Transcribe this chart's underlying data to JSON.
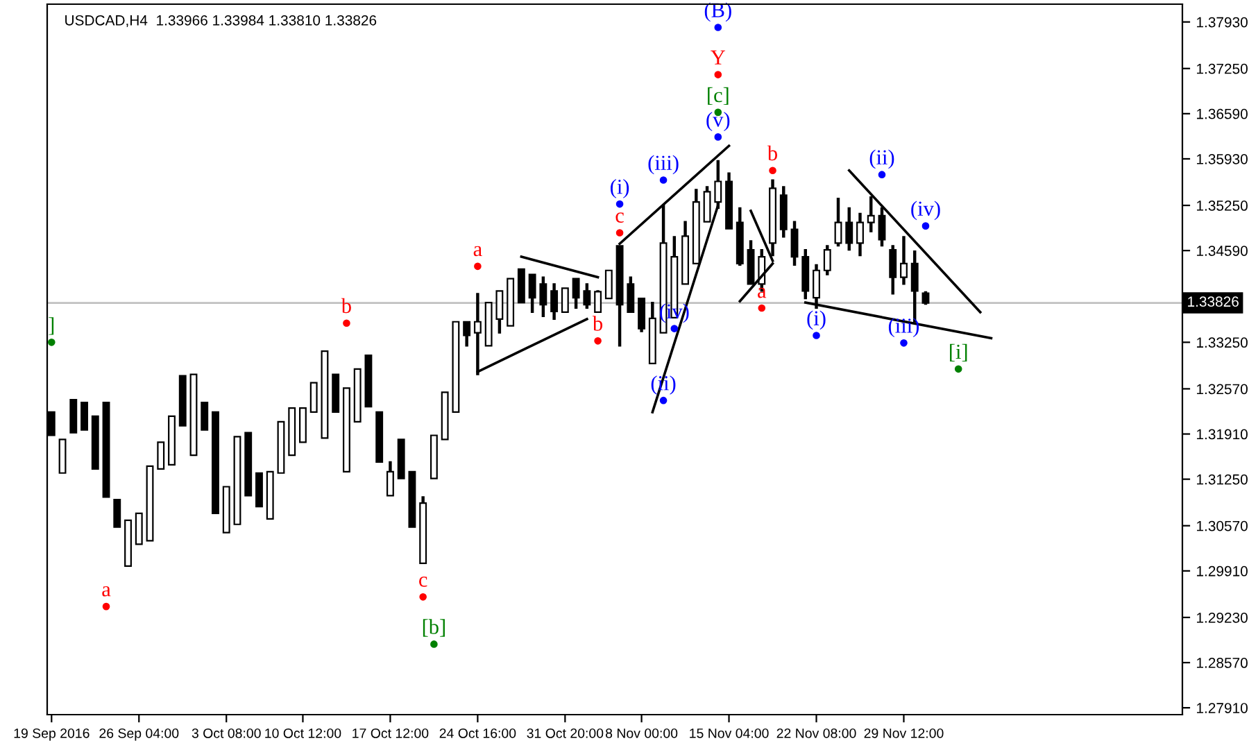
{
  "chart_data": {
    "type": "candlestick",
    "title": "USDCAD,H4  1.33966 1.33984 1.33810 1.33826",
    "categories": [
      "19 Sep 2016",
      null,
      null,
      null,
      null,
      null,
      null,
      null,
      "26 Sep 04:00",
      null,
      null,
      null,
      null,
      null,
      null,
      null,
      "3 Oct 08:00",
      null,
      null,
      null,
      null,
      null,
      null,
      "10 Oct 12:00",
      null,
      null,
      null,
      null,
      null,
      null,
      null,
      "17 Oct 12:00",
      null,
      null,
      null,
      null,
      null,
      null,
      null,
      "24 Oct 16:00",
      null,
      null,
      null,
      null,
      null,
      null,
      null,
      "31 Oct 20:00",
      null,
      null,
      null,
      null,
      null,
      null,
      "8 Nov 00:00",
      null,
      null,
      null,
      null,
      null,
      null,
      null,
      "15 Nov 04:00",
      null,
      null,
      null,
      null,
      null,
      null,
      null,
      "22 Nov 08:00",
      null,
      null,
      null,
      null,
      null,
      null,
      null,
      "29 Nov 12:00",
      null,
      null,
      null,
      null,
      null,
      null,
      null,
      null,
      null,
      null,
      null,
      null,
      null,
      null,
      null,
      null,
      null,
      null,
      null,
      null,
      null,
      null,
      null,
      null,
      null
    ],
    "ohlc": [
      [
        1.3223,
        1.3223,
        1.3189,
        1.3189
      ],
      [
        1.3134,
        1.3183,
        1.3134,
        1.3183
      ],
      [
        1.3241,
        1.3241,
        1.3193,
        1.3193
      ],
      [
        1.3237,
        1.3237,
        1.3197,
        1.3197
      ],
      [
        1.3217,
        1.3217,
        1.314,
        1.314
      ],
      [
        1.3237,
        1.3237,
        1.3099,
        1.3099
      ],
      [
        1.3095,
        1.3095,
        1.3055,
        1.3055
      ],
      [
        1.2998,
        1.3065,
        1.2998,
        1.3065
      ],
      [
        1.303,
        1.3075,
        1.303,
        1.3075
      ],
      [
        1.3035,
        1.3144,
        1.3035,
        1.3144
      ],
      [
        1.314,
        1.3179,
        1.314,
        1.3179
      ],
      [
        1.3146,
        1.3217,
        1.3146,
        1.3217
      ],
      [
        1.3276,
        1.3276,
        1.3203,
        1.3203
      ],
      [
        1.316,
        1.3278,
        1.316,
        1.3278
      ],
      [
        1.3237,
        1.3237,
        1.3197,
        1.3197
      ],
      [
        1.3223,
        1.3223,
        1.3075,
        1.3075
      ],
      [
        1.3047,
        1.3114,
        1.3047,
        1.3114
      ],
      [
        1.3059,
        1.3187,
        1.3059,
        1.3187
      ],
      [
        1.3193,
        1.3193,
        1.3101,
        1.3101
      ],
      [
        1.3134,
        1.3134,
        1.3085,
        1.3085
      ],
      [
        1.3067,
        1.3136,
        1.3067,
        1.3136
      ],
      [
        1.3134,
        1.3209,
        1.3134,
        1.3209
      ],
      [
        1.316,
        1.3229,
        1.316,
        1.3229
      ],
      [
        1.3179,
        1.3229,
        1.3179,
        1.3229
      ],
      [
        1.3223,
        1.3266,
        1.3223,
        1.3266
      ],
      [
        1.3185,
        1.3312,
        1.3185,
        1.3312
      ],
      [
        1.3278,
        1.3278,
        1.3223,
        1.3223
      ],
      [
        1.3136,
        1.3258,
        1.3136,
        1.3258
      ],
      [
        1.3209,
        1.3286,
        1.3209,
        1.3286
      ],
      [
        1.3306,
        1.3306,
        1.3231,
        1.3231
      ],
      [
        1.3223,
        1.3223,
        1.315,
        1.315
      ],
      [
        1.3101,
        1.315,
        1.3101,
        1.3136
      ],
      [
        1.3183,
        1.3183,
        1.3126,
        1.3126
      ],
      [
        1.3136,
        1.3136,
        1.3055,
        1.3055
      ],
      [
        1.3002,
        1.3099,
        1.3002,
        1.309
      ],
      [
        1.3126,
        1.3189,
        1.3126,
        1.3189
      ],
      [
        1.3183,
        1.3252,
        1.3183,
        1.3252
      ],
      [
        1.3223,
        1.3355,
        1.3223,
        1.3355
      ],
      [
        1.3355,
        1.3355,
        1.332,
        1.3335
      ],
      [
        1.3339,
        1.3396,
        1.3278,
        1.3355
      ],
      [
        1.332,
        1.3383,
        1.332,
        1.3383
      ],
      [
        1.3359,
        1.34,
        1.3339,
        1.34
      ],
      [
        1.3349,
        1.3418,
        1.3349,
        1.3418
      ],
      [
        1.3432,
        1.3432,
        1.3383,
        1.3383
      ],
      [
        1.3424,
        1.3424,
        1.3369,
        1.339
      ],
      [
        1.341,
        1.342,
        1.3363,
        1.338
      ],
      [
        1.34,
        1.341,
        1.3359,
        1.337
      ],
      [
        1.3369,
        1.3404,
        1.3369,
        1.3404
      ],
      [
        1.3418,
        1.3418,
        1.3375,
        1.339
      ],
      [
        1.34,
        1.341,
        1.3375,
        1.338
      ],
      [
        1.3369,
        1.34,
        1.3369,
        1.3399
      ],
      [
        1.3389,
        1.343,
        1.3389,
        1.343
      ],
      [
        1.3466,
        1.3466,
        1.332,
        1.338
      ],
      [
        1.341,
        1.342,
        1.3369,
        1.3369
      ],
      [
        1.3389,
        1.3389,
        1.3341,
        1.3345
      ],
      [
        1.3294,
        1.3383,
        1.3294,
        1.336
      ],
      [
        1.3339,
        1.3525,
        1.3339,
        1.347
      ],
      [
        1.3361,
        1.3479,
        1.3361,
        1.345
      ],
      [
        1.341,
        1.3501,
        1.341,
        1.348
      ],
      [
        1.344,
        1.3548,
        1.344,
        1.353
      ],
      [
        1.3501,
        1.3552,
        1.3501,
        1.3545
      ],
      [
        1.353,
        1.359,
        1.3521,
        1.356
      ],
      [
        1.356,
        1.3572,
        1.3491,
        1.3491
      ],
      [
        1.35,
        1.3521,
        1.3438,
        1.344
      ],
      [
        1.346,
        1.3473,
        1.341,
        1.341
      ],
      [
        1.341,
        1.346,
        1.34,
        1.345
      ],
      [
        1.347,
        1.3562,
        1.3452,
        1.355
      ],
      [
        1.354,
        1.3552,
        1.3479,
        1.349
      ],
      [
        1.349,
        1.3501,
        1.3438,
        1.345
      ],
      [
        1.345,
        1.346,
        1.3389,
        1.34
      ],
      [
        1.339,
        1.3438,
        1.3375,
        1.343
      ],
      [
        1.343,
        1.3466,
        1.3424,
        1.346
      ],
      [
        1.347,
        1.3535,
        1.3466,
        1.35
      ],
      [
        1.35,
        1.3521,
        1.346,
        1.347
      ],
      [
        1.347,
        1.3513,
        1.3452,
        1.35
      ],
      [
        1.35,
        1.3537,
        1.3487,
        1.351
      ],
      [
        1.351,
        1.3521,
        1.3466,
        1.3475
      ],
      [
        1.346,
        1.3466,
        1.3396,
        1.342
      ],
      [
        1.342,
        1.3479,
        1.341,
        1.344
      ],
      [
        1.344,
        1.3458,
        1.3355,
        1.34
      ],
      [
        1.33966,
        1.33984,
        1.3381,
        1.33826
      ],
      null,
      null,
      null,
      null,
      null,
      null,
      null,
      null,
      null,
      null,
      null,
      null,
      null,
      null,
      null,
      null,
      null,
      null,
      null,
      null,
      null,
      null,
      null
    ],
    "color": "#000000",
    "ylim": [
      1.2781,
      1.3819
    ],
    "yticks": [
      {
        "value": 1.2791,
        "label": "1.27910"
      },
      {
        "value": 1.2857,
        "label": "1.28570"
      },
      {
        "value": 1.2923,
        "label": "1.29230"
      },
      {
        "value": 1.2991,
        "label": "1.29910"
      },
      {
        "value": 1.3057,
        "label": "1.30570"
      },
      {
        "value": 1.3125,
        "label": "1.31250"
      },
      {
        "value": 1.3191,
        "label": "1.31910"
      },
      {
        "value": 1.3257,
        "label": "1.32570"
      },
      {
        "value": 1.3325,
        "label": "1.33250"
      },
      {
        "value": 1.3459,
        "label": "1.34590"
      },
      {
        "value": 1.3525,
        "label": "1.35250"
      },
      {
        "value": 1.3593,
        "label": "1.35930"
      },
      {
        "value": 1.3659,
        "label": "1.36590"
      },
      {
        "value": 1.3725,
        "label": "1.37250"
      },
      {
        "value": 1.3793,
        "label": "1.37930"
      }
    ],
    "ref_lines": [
      {
        "axis": "y",
        "value": 1.33826,
        "label": "1.33826",
        "color": "#c0c0c0"
      }
    ],
    "series": [
      {
        "type": "line",
        "color": "#000000",
        "values": [
          null,
          null,
          null,
          null,
          null,
          null,
          null,
          null,
          null,
          null,
          null,
          null,
          null,
          null,
          null,
          null,
          null,
          null,
          null,
          null,
          null,
          null,
          null,
          null,
          null,
          null,
          null,
          null,
          null,
          null,
          null,
          null,
          null,
          null,
          null,
          null,
          null,
          null,
          null,
          null,
          null,
          null,
          null,
          1.345,
          null,
          null,
          null,
          null,
          null,
          null,
          1.342,
          null,
          null,
          null,
          null,
          null,
          null,
          null,
          null,
          null,
          null,
          null,
          null,
          null,
          null,
          null,
          null,
          null,
          null,
          null,
          null,
          null,
          null,
          null,
          null,
          null,
          null,
          null,
          null,
          null,
          null,
          null,
          null,
          null,
          null,
          null,
          null,
          null,
          null,
          null,
          null,
          null,
          null,
          null,
          null,
          null,
          null,
          null,
          null,
          null,
          null,
          null,
          null,
          null
        ]
      },
      {
        "type": "line",
        "color": "#000000",
        "values": [
          null,
          null,
          null,
          null,
          null,
          null,
          null,
          null,
          null,
          null,
          null,
          null,
          null,
          null,
          null,
          null,
          null,
          null,
          null,
          null,
          null,
          null,
          null,
          null,
          null,
          null,
          null,
          null,
          null,
          null,
          null,
          null,
          null,
          null,
          null,
          null,
          null,
          null,
          null,
          1.3282,
          null,
          null,
          null,
          null,
          null,
          null,
          null,
          null,
          null,
          1.3359,
          null,
          null,
          null,
          null,
          null,
          null,
          null,
          null,
          null,
          null,
          null,
          null,
          null,
          null,
          null,
          null,
          null,
          null,
          null,
          null,
          null,
          null,
          null,
          null,
          null,
          null,
          null,
          null,
          null,
          null,
          null,
          null,
          null,
          null,
          null,
          null,
          null,
          null,
          null,
          null,
          null,
          null,
          null,
          null,
          null,
          null,
          null,
          null,
          null,
          null,
          null,
          null,
          null,
          null
        ]
      },
      {
        "type": "line",
        "color": "#000000",
        "values": [
          null,
          null,
          null,
          null,
          null,
          null,
          null,
          null,
          null,
          null,
          null,
          null,
          null,
          null,
          null,
          null,
          null,
          null,
          null,
          null,
          null,
          null,
          null,
          null,
          null,
          null,
          null,
          null,
          null,
          null,
          null,
          null,
          null,
          null,
          null,
          null,
          null,
          null,
          null,
          null,
          null,
          null,
          null,
          null,
          null,
          null,
          null,
          null,
          null,
          null,
          null,
          null,
          1.3469,
          null,
          null,
          null,
          null,
          null,
          null,
          null,
          null,
          null,
          1.3612,
          null,
          null,
          null,
          null,
          null,
          null,
          null,
          null,
          null,
          null,
          null,
          null,
          null,
          null,
          null,
          null,
          null,
          null,
          null,
          null,
          null,
          null,
          null,
          null,
          null,
          null,
          null,
          null,
          null,
          null,
          null,
          null,
          null,
          null,
          null,
          null,
          null,
          null,
          null,
          null,
          null
        ]
      },
      {
        "type": "line",
        "color": "#000000",
        "values": [
          null,
          null,
          null,
          null,
          null,
          null,
          null,
          null,
          null,
          null,
          null,
          null,
          null,
          null,
          null,
          null,
          null,
          null,
          null,
          null,
          null,
          null,
          null,
          null,
          null,
          null,
          null,
          null,
          null,
          null,
          null,
          null,
          null,
          null,
          null,
          null,
          null,
          null,
          null,
          null,
          null,
          null,
          null,
          null,
          null,
          null,
          null,
          null,
          null,
          null,
          null,
          null,
          null,
          null,
          null,
          1.3223,
          null,
          null,
          null,
          null,
          null,
          1.3525,
          null,
          null,
          null,
          null,
          null,
          null,
          null,
          null,
          null,
          null,
          null,
          null,
          null,
          null,
          null,
          null,
          null,
          null,
          null,
          null,
          null,
          null,
          null,
          null,
          null,
          null,
          null,
          null,
          null,
          null,
          null,
          null,
          null,
          null,
          null,
          null,
          null,
          null,
          null,
          null,
          null,
          null
        ]
      },
      {
        "type": "line",
        "color": "#000000",
        "values": [
          null,
          null,
          null,
          null,
          null,
          null,
          null,
          null,
          null,
          null,
          null,
          null,
          null,
          null,
          null,
          null,
          null,
          null,
          null,
          null,
          null,
          null,
          null,
          null,
          null,
          null,
          null,
          null,
          null,
          null,
          null,
          null,
          null,
          null,
          null,
          null,
          null,
          null,
          null,
          null,
          null,
          null,
          null,
          null,
          null,
          null,
          null,
          null,
          null,
          null,
          null,
          null,
          null,
          null,
          null,
          null,
          null,
          null,
          null,
          null,
          null,
          null,
          null,
          null,
          1.3517,
          null,
          1.3444,
          null,
          null,
          null,
          null,
          null,
          null,
          null,
          null,
          null,
          null,
          null,
          null,
          null,
          null,
          null,
          null,
          null,
          null,
          null,
          null,
          null,
          null,
          null,
          null,
          null,
          null,
          null,
          null,
          null,
          null,
          null,
          null,
          null,
          null,
          null,
          null,
          null
        ]
      },
      {
        "type": "line",
        "color": "#000000",
        "values": [
          null,
          null,
          null,
          null,
          null,
          null,
          null,
          null,
          null,
          null,
          null,
          null,
          null,
          null,
          null,
          null,
          null,
          null,
          null,
          null,
          null,
          null,
          null,
          null,
          null,
          null,
          null,
          null,
          null,
          null,
          null,
          null,
          null,
          null,
          null,
          null,
          null,
          null,
          null,
          null,
          null,
          null,
          null,
          null,
          null,
          null,
          null,
          null,
          null,
          null,
          null,
          null,
          null,
          null,
          null,
          null,
          null,
          null,
          null,
          null,
          null,
          null,
          null,
          1.3385,
          null,
          null,
          1.344,
          null,
          null,
          null,
          null,
          null,
          null,
          null,
          null,
          null,
          null,
          null,
          null,
          null,
          null,
          null,
          null,
          null,
          null,
          null,
          null,
          null,
          null,
          null,
          null,
          null,
          null,
          null,
          null,
          null,
          null,
          null,
          null,
          null,
          null,
          null,
          null,
          null
        ]
      },
      {
        "type": "line",
        "color": "#000000",
        "values": [
          null,
          null,
          null,
          null,
          null,
          null,
          null,
          null,
          null,
          null,
          null,
          null,
          null,
          null,
          null,
          null,
          null,
          null,
          null,
          null,
          null,
          null,
          null,
          null,
          null,
          null,
          null,
          null,
          null,
          null,
          null,
          null,
          null,
          null,
          null,
          null,
          null,
          null,
          null,
          null,
          null,
          null,
          null,
          null,
          null,
          null,
          null,
          null,
          null,
          null,
          null,
          null,
          null,
          null,
          null,
          null,
          null,
          null,
          null,
          null,
          null,
          null,
          null,
          null,
          null,
          null,
          null,
          null,
          null,
          null,
          null,
          null,
          null,
          1.3576,
          null,
          null,
          null,
          null,
          null,
          null,
          null,
          null,
          null,
          null,
          null,
          1.3369,
          null,
          null,
          null,
          null,
          null,
          null,
          null,
          null,
          null,
          null,
          null,
          null,
          null,
          null,
          null,
          null,
          null,
          null
        ]
      },
      {
        "type": "line",
        "color": "#000000",
        "values": [
          null,
          null,
          null,
          null,
          null,
          null,
          null,
          null,
          null,
          null,
          null,
          null,
          null,
          null,
          null,
          null,
          null,
          null,
          null,
          null,
          null,
          null,
          null,
          null,
          null,
          null,
          null,
          null,
          null,
          null,
          null,
          null,
          null,
          null,
          null,
          null,
          null,
          null,
          null,
          null,
          null,
          null,
          null,
          null,
          null,
          null,
          null,
          null,
          null,
          null,
          null,
          null,
          null,
          null,
          null,
          null,
          null,
          null,
          null,
          null,
          null,
          null,
          null,
          null,
          null,
          null,
          null,
          null,
          null,
          1.3383,
          null,
          null,
          null,
          null,
          null,
          null,
          null,
          null,
          null,
          null,
          null,
          null,
          null,
          null,
          null,
          null,
          1.3331,
          null,
          null,
          null,
          null,
          null,
          null,
          null,
          null,
          null,
          null,
          null,
          null,
          null,
          null,
          null,
          null,
          null
        ]
      },
      {
        "type": "scatter",
        "marker": "circle",
        "color": "#ff0000",
        "values": [
          null,
          null,
          null,
          null,
          null,
          1.2939,
          null,
          null,
          null,
          null,
          null,
          null,
          null,
          null,
          null,
          null,
          null,
          null,
          null,
          null,
          null,
          null,
          null,
          null,
          null,
          null,
          null,
          1.3353,
          null,
          null,
          null,
          null,
          null,
          null,
          1.2953,
          null,
          null,
          null,
          null,
          1.3436,
          null,
          null,
          null,
          null,
          null,
          null,
          null,
          null,
          null,
          null,
          1.3327,
          null,
          1.3485,
          null,
          null,
          null,
          null,
          null,
          null,
          null,
          null,
          1.3716,
          null,
          null,
          null,
          1.3375,
          1.3576,
          null,
          null,
          null,
          null,
          null,
          null,
          null,
          null,
          null,
          null,
          null,
          null,
          null,
          null,
          null,
          null,
          null,
          null,
          null,
          null,
          null,
          null,
          null,
          null,
          null,
          null,
          null,
          null,
          null,
          null,
          null,
          null,
          null,
          null,
          null,
          null,
          null
        ],
        "value_labels": [
          null,
          null,
          null,
          null,
          null,
          "a",
          null,
          null,
          null,
          null,
          null,
          null,
          null,
          null,
          null,
          null,
          null,
          null,
          null,
          null,
          null,
          null,
          null,
          null,
          null,
          null,
          null,
          "b",
          null,
          null,
          null,
          null,
          null,
          null,
          "c",
          null,
          null,
          null,
          null,
          "a",
          null,
          null,
          null,
          null,
          null,
          null,
          null,
          null,
          null,
          null,
          "b",
          null,
          "c",
          null,
          null,
          null,
          null,
          null,
          null,
          null,
          null,
          "Y",
          null,
          null,
          null,
          "a",
          "b",
          null,
          null,
          null,
          null,
          null,
          null,
          null,
          null,
          null,
          null,
          null,
          null,
          null,
          null,
          null,
          null,
          null,
          null,
          null,
          null,
          null,
          null,
          null,
          null,
          null,
          null,
          null,
          null,
          null,
          null,
          null,
          null,
          null,
          null,
          null,
          null,
          null
        ]
      },
      {
        "type": "scatter",
        "marker": "circle",
        "color": "#0000ff",
        "values": [
          null,
          null,
          null,
          null,
          null,
          null,
          null,
          null,
          null,
          null,
          null,
          null,
          null,
          null,
          null,
          null,
          null,
          null,
          null,
          null,
          null,
          null,
          null,
          null,
          null,
          null,
          null,
          null,
          null,
          null,
          null,
          null,
          null,
          null,
          null,
          null,
          null,
          null,
          null,
          null,
          null,
          null,
          null,
          null,
          null,
          null,
          null,
          null,
          null,
          null,
          null,
          null,
          1.3527,
          null,
          null,
          null,
          1.3562,
          1.3345,
          null,
          null,
          null,
          1.3785,
          null,
          null,
          null,
          null,
          null,
          null,
          null,
          null,
          1.3335,
          null,
          null,
          null,
          null,
          null,
          1.357,
          null,
          1.3324,
          null,
          1.3495,
          null,
          null,
          null,
          null,
          null,
          null,
          null,
          null,
          null,
          null,
          null,
          null,
          null,
          null,
          null,
          null,
          null,
          null,
          null,
          null,
          null,
          null,
          null
        ],
        "value_labels": [
          null,
          null,
          null,
          null,
          null,
          null,
          null,
          null,
          null,
          null,
          null,
          null,
          null,
          null,
          null,
          null,
          null,
          null,
          null,
          null,
          null,
          null,
          null,
          null,
          null,
          null,
          null,
          null,
          null,
          null,
          null,
          null,
          null,
          null,
          null,
          null,
          null,
          null,
          null,
          null,
          null,
          null,
          null,
          null,
          null,
          null,
          null,
          null,
          null,
          null,
          null,
          null,
          "(i)",
          null,
          null,
          null,
          "(iii)",
          "(iv)",
          null,
          null,
          null,
          "(B)",
          null,
          null,
          null,
          null,
          null,
          null,
          null,
          null,
          "(i)",
          null,
          null,
          null,
          null,
          null,
          "(ii)",
          null,
          "(iii)",
          null,
          "(iv)",
          null,
          null,
          null,
          null,
          null,
          null,
          null,
          null,
          null,
          null,
          null,
          null,
          null,
          null,
          null,
          null,
          null,
          null,
          null,
          null,
          null,
          null,
          null
        ]
      },
      {
        "type": "scatter",
        "marker": "circle",
        "color": "#0000ff",
        "values": [
          null,
          null,
          null,
          null,
          null,
          null,
          null,
          null,
          null,
          null,
          null,
          null,
          null,
          null,
          null,
          null,
          null,
          null,
          null,
          null,
          null,
          null,
          null,
          null,
          null,
          null,
          null,
          null,
          null,
          null,
          null,
          null,
          null,
          null,
          null,
          null,
          null,
          null,
          null,
          null,
          null,
          null,
          null,
          null,
          null,
          null,
          null,
          null,
          null,
          null,
          null,
          null,
          null,
          null,
          null,
          null,
          1.324,
          null,
          null,
          null,
          null,
          1.3625,
          null,
          null,
          null,
          null,
          null,
          null,
          null,
          null,
          null,
          null,
          null,
          null,
          null,
          null,
          null,
          null,
          null,
          null,
          null,
          null,
          null,
          null,
          null,
          null,
          null,
          null,
          null,
          null,
          null,
          null,
          null,
          null,
          null,
          null,
          null,
          null,
          null,
          null,
          null,
          null,
          null,
          null
        ],
        "value_labels": [
          null,
          null,
          null,
          null,
          null,
          null,
          null,
          null,
          null,
          null,
          null,
          null,
          null,
          null,
          null,
          null,
          null,
          null,
          null,
          null,
          null,
          null,
          null,
          null,
          null,
          null,
          null,
          null,
          null,
          null,
          null,
          null,
          null,
          null,
          null,
          null,
          null,
          null,
          null,
          null,
          null,
          null,
          null,
          null,
          null,
          null,
          null,
          null,
          null,
          null,
          null,
          null,
          null,
          null,
          null,
          null,
          "(ii)",
          null,
          null,
          null,
          null,
          "(v)",
          null,
          null,
          null,
          null,
          null,
          null,
          null,
          null,
          null,
          null,
          null,
          null,
          null,
          null,
          null,
          null,
          null,
          null,
          null,
          null,
          null,
          null,
          null,
          null,
          null,
          null,
          null,
          null,
          null,
          null,
          null,
          null,
          null,
          null,
          null,
          null,
          null,
          null,
          null,
          null,
          null,
          null
        ]
      },
      {
        "type": "scatter",
        "marker": "circle",
        "color": "#008000",
        "values": [
          1.3325,
          null,
          null,
          null,
          null,
          null,
          null,
          null,
          null,
          null,
          null,
          null,
          null,
          null,
          null,
          null,
          null,
          null,
          null,
          null,
          null,
          null,
          null,
          null,
          null,
          null,
          null,
          null,
          null,
          null,
          null,
          null,
          null,
          null,
          null,
          1.2884,
          null,
          null,
          null,
          null,
          null,
          null,
          null,
          null,
          null,
          null,
          null,
          null,
          null,
          null,
          null,
          null,
          null,
          null,
          null,
          null,
          null,
          null,
          null,
          null,
          null,
          1.3661,
          null,
          null,
          null,
          null,
          null,
          null,
          null,
          null,
          null,
          null,
          null,
          null,
          null,
          null,
          null,
          null,
          null,
          null,
          null,
          null,
          null,
          1.3286,
          null,
          null,
          null,
          null,
          null,
          null,
          null,
          null,
          null,
          null,
          null,
          null,
          null,
          null,
          null,
          null,
          null,
          null,
          null,
          null
        ],
        "value_labels": [
          "]",
          null,
          null,
          null,
          null,
          null,
          null,
          null,
          null,
          null,
          null,
          null,
          null,
          null,
          null,
          null,
          null,
          null,
          null,
          null,
          null,
          null,
          null,
          null,
          null,
          null,
          null,
          null,
          null,
          null,
          null,
          null,
          null,
          null,
          null,
          "[b]",
          null,
          null,
          null,
          null,
          null,
          null,
          null,
          null,
          null,
          null,
          null,
          null,
          null,
          null,
          null,
          null,
          null,
          null,
          null,
          null,
          null,
          null,
          null,
          null,
          null,
          "[c]",
          null,
          null,
          null,
          null,
          null,
          null,
          null,
          null,
          null,
          null,
          null,
          null,
          null,
          null,
          null,
          null,
          null,
          null,
          null,
          null,
          null,
          "[i]",
          null,
          null,
          null,
          null,
          null,
          null,
          null,
          null,
          null,
          null,
          null,
          null,
          null,
          null,
          null,
          null,
          null,
          null,
          null,
          null
        ]
      }
    ]
  }
}
